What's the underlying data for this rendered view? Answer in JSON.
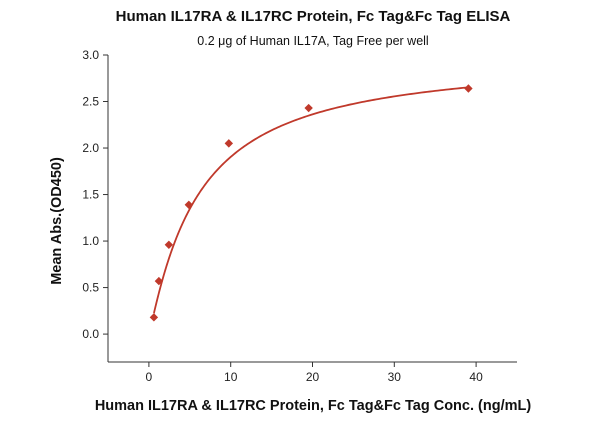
{
  "chart_data": {
    "type": "scatter",
    "title": "Human IL17RA & IL17RC Protein, Fc Tag&Fc Tag ELISA",
    "subtitle": "0.2 μg of Human IL17A, Tag Free per well",
    "xlabel": "Human IL17RA & IL17RC Protein, Fc Tag&Fc Tag Conc. (ng/mL)",
    "ylabel": "Mean Abs.(OD450)",
    "xlim": [
      -5,
      45
    ],
    "ylim": [
      -0.3,
      3.0
    ],
    "x_ticks": [
      0,
      10,
      20,
      30,
      40
    ],
    "y_ticks": [
      0.0,
      0.5,
      1.0,
      1.5,
      2.0,
      2.5,
      3.0
    ],
    "x_tick_labels": [
      "0",
      "10",
      "20",
      "30",
      "40"
    ],
    "y_tick_labels": [
      "0.0",
      "0.5",
      "1.0",
      "1.5",
      "2.0",
      "2.5",
      "3.0"
    ],
    "grid": false,
    "colors": {
      "series": "#c0392b"
    },
    "series": [
      {
        "marker": "diamond",
        "x": [
          0.61,
          1.22,
          2.44,
          4.88,
          9.77,
          19.53,
          39.06
        ],
        "y": [
          0.18,
          0.57,
          0.96,
          1.39,
          2.05,
          2.43,
          2.64
        ]
      }
    ],
    "fit_curve": {
      "type": "four-parameter logistic"
    }
  }
}
